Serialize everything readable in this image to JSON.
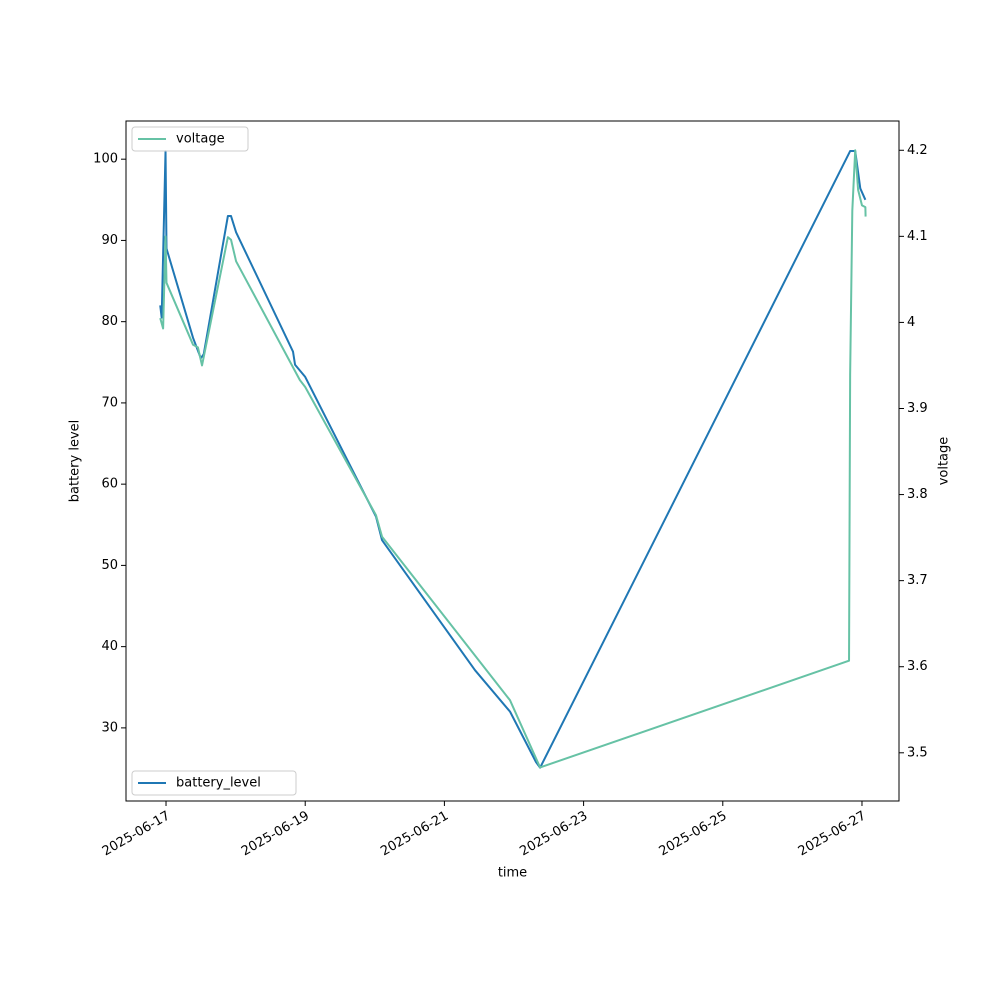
{
  "chart_data": {
    "type": "line",
    "xlabel": "time",
    "ylabel": "battery level",
    "y2label": "voltage",
    "xlim": [
      "2025-06-16T10:12",
      "2025-06-27T12:46"
    ],
    "xticks": [
      "2025-06-17",
      "2025-06-19",
      "2025-06-21",
      "2025-06-23",
      "2025-06-25",
      "2025-06-27"
    ],
    "ylim": [
      21.0,
      104.7
    ],
    "yticks": [
      30,
      40,
      50,
      60,
      70,
      80,
      90,
      100
    ],
    "y2lim": [
      3.444,
      4.234
    ],
    "y2ticks": [
      3.5,
      3.6,
      3.7,
      3.8,
      3.9,
      4.0,
      4.1,
      4.2
    ],
    "series": [
      {
        "name": "battery_level",
        "color": "#1f77b4",
        "legend_loc": "lower left",
        "x": [
          "2025-06-16T22:00",
          "2025-06-16T22:30",
          "2025-06-16T23:50",
          "2025-06-17T00:10",
          "2025-06-17T09:20",
          "2025-06-17T12:00",
          "2025-06-17T13:00",
          "2025-06-17T21:20",
          "2025-06-17T22:25",
          "2025-06-18T00:10",
          "2025-06-18T19:48",
          "2025-06-18T20:30",
          "2025-06-19T00:00",
          "2025-06-20T00:25",
          "2025-06-20T02:30",
          "2025-06-21T10:33",
          "2025-06-21T22:38",
          "2025-06-22T07:35",
          "2025-06-22T09:00",
          "2025-06-26T19:55",
          "2025-06-26T21:40",
          "2025-06-26T23:25",
          "2025-06-27T01:10"
        ],
        "values": [
          82,
          80.5,
          101,
          89,
          78,
          75.5,
          76,
          93,
          93,
          91,
          76.3,
          74.7,
          73.2,
          56,
          53.1,
          37.1,
          32,
          25.8,
          25.1,
          101,
          101,
          96.4,
          95
        ]
      },
      {
        "name": "voltage",
        "color": "#66c2a5",
        "axis": "y2",
        "legend_loc": "upper left",
        "x": [
          "2025-06-16T22:00",
          "2025-06-16T23:00",
          "2025-06-16T23:50",
          "2025-06-17T00:10",
          "2025-06-17T09:20",
          "2025-06-17T11:00",
          "2025-06-17T12:25",
          "2025-06-17T21:20",
          "2025-06-17T22:25",
          "2025-06-18T00:10",
          "2025-06-18T22:10",
          "2025-06-19T00:00",
          "2025-06-20T00:25",
          "2025-06-20T02:30",
          "2025-06-21T22:38",
          "2025-06-22T09:00",
          "2025-06-26T19:32",
          "2025-06-26T19:55",
          "2025-06-26T20:40",
          "2025-06-26T21:40",
          "2025-06-26T22:40",
          "2025-06-27T00:00",
          "2025-06-27T01:10",
          "2025-06-27T01:15"
        ],
        "values": [
          4.005,
          3.993,
          4.1,
          4.046,
          3.974,
          3.971,
          3.95,
          4.099,
          4.096,
          4.071,
          3.933,
          3.925,
          3.776,
          3.751,
          3.561,
          3.483,
          3.607,
          3.939,
          4.13,
          4.2,
          4.154,
          4.136,
          4.134,
          4.123
        ]
      }
    ]
  }
}
